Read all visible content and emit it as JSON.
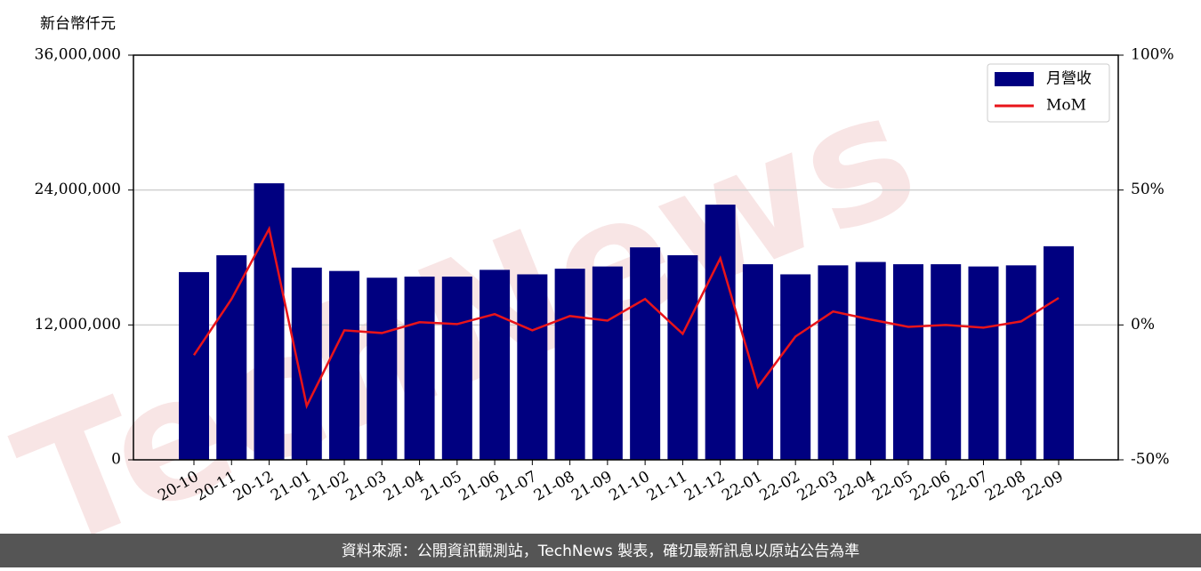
{
  "chart_data": {
    "type": "bar_line",
    "unit_label": "新台幣仟元",
    "watermark": "TechNews",
    "categories": [
      "20-10",
      "20-11",
      "20-12",
      "21-01",
      "21-02",
      "21-03",
      "21-04",
      "21-05",
      "21-06",
      "21-07",
      "21-08",
      "21-09",
      "21-10",
      "21-11",
      "21-12",
      "22-01",
      "22-02",
      "22-03",
      "22-04",
      "22-05",
      "22-06",
      "22-07",
      "22-08",
      "22-09"
    ],
    "series": [
      {
        "name": "月營收",
        "color": "#000080",
        "values": [
          16700000,
          18200000,
          24600000,
          17100000,
          16800000,
          16200000,
          16300000,
          16300000,
          16900000,
          16500000,
          17000000,
          17200000,
          18900000,
          18200000,
          22700000,
          17400000,
          16500000,
          17300000,
          17600000,
          17400000,
          17400000,
          17200000,
          17300000,
          19000000
        ]
      },
      {
        "name": "MoM",
        "color": "#e8141a",
        "axis": "y2",
        "values": [
          -11.2,
          9.6,
          35.6,
          -30,
          -2,
          -3,
          1,
          0.3,
          4,
          -2,
          3.3,
          1.6,
          9.6,
          -3.3,
          24.7,
          -23,
          -4.3,
          5,
          2,
          -0.7,
          0,
          -1,
          1.3,
          10
        ]
      }
    ],
    "ylim": [
      0,
      36000000
    ],
    "yticks": [
      0,
      {
        "value": 12000000,
        "label": "12,000,000"
      },
      {
        "value": 24000000,
        "label": "24,000,000"
      },
      {
        "value": 36000000,
        "label": "36,000,000"
      }
    ],
    "y2lim": [
      -50,
      100
    ],
    "y2ticks": [
      {
        "value": -50,
        "label": "-50%"
      },
      {
        "value": 0,
        "label": "0%"
      },
      {
        "value": 50,
        "label": "50%"
      },
      {
        "value": 100,
        "label": "100%"
      }
    ],
    "grid": true,
    "legend": "upper right",
    "footer": "資料來源：公開資訊觀測站，TechNews 製表，確切最新訊息以原站公告為準"
  }
}
